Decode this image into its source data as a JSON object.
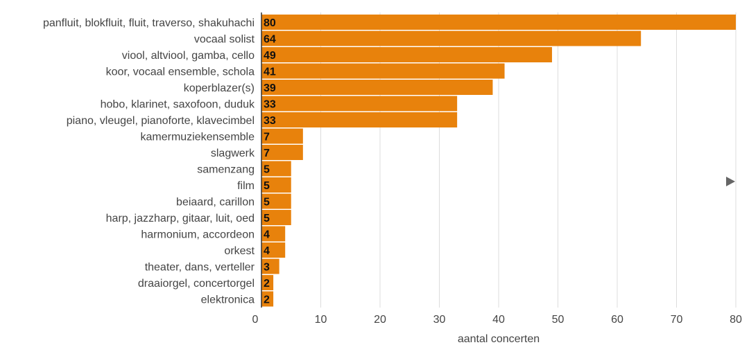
{
  "chart_data": {
    "type": "bar",
    "orientation": "horizontal",
    "categories": [
      "panfluit, blokfluit, fluit, traverso, shakuhachi",
      "vocaal solist",
      "viool, altviool, gamba, cello",
      "koor, vocaal ensemble, schola",
      "koperblazer(s)",
      "hobo, klarinet, saxofoon, duduk",
      "piano, vleugel, pianoforte, klavecimbel",
      "kamermuziekensemble",
      "slagwerk",
      "samenzang",
      "film",
      "beiaard, carillon",
      "harp, jazzharp, gitaar, luit, oed",
      "harmonium, accordeon",
      "orkest",
      "theater, dans, verteller",
      "draaiorgel, concertorgel",
      "elektronica"
    ],
    "values": [
      80,
      64,
      49,
      41,
      39,
      33,
      33,
      7,
      7,
      5,
      5,
      5,
      5,
      4,
      4,
      3,
      2,
      2
    ],
    "xlabel": "aantal concerten",
    "ylabel": "",
    "xlim": [
      0,
      80
    ],
    "xticks": [
      "0",
      "10",
      "20",
      "30",
      "40",
      "50",
      "60",
      "70",
      "80"
    ],
    "grid": true,
    "bar_color": "#E8820C",
    "label_color": "#111111",
    "text_color": "#444444"
  },
  "controls": {
    "next_icon": "play-triangle-icon"
  }
}
